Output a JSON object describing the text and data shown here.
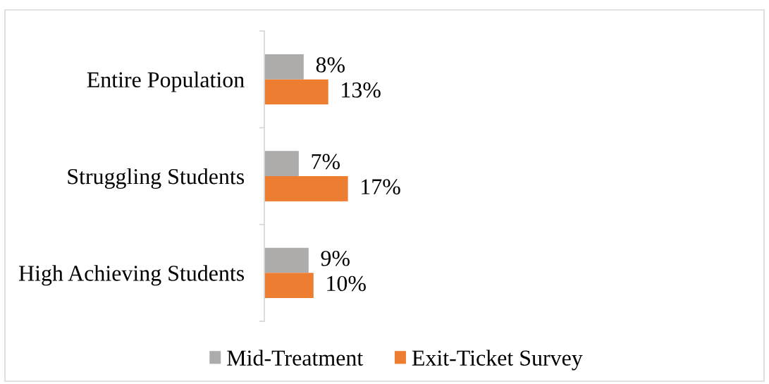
{
  "chart_data": {
    "type": "bar",
    "orientation": "horizontal",
    "categories": [
      "Entire Population",
      "Struggling Students",
      "High Achieving Students"
    ],
    "series": [
      {
        "name": "Mid-Treatment",
        "color": "#aeabab",
        "values": [
          8,
          7,
          9
        ],
        "value_labels": [
          "8%",
          "7%",
          "9%"
        ]
      },
      {
        "name": "Exit-Ticket Survey",
        "color": "#ed7d31",
        "values": [
          13,
          17,
          10
        ],
        "value_labels": [
          "13%",
          "17%",
          "10%"
        ]
      }
    ],
    "tick_labels": "y",
    "legend": "bottom"
  }
}
